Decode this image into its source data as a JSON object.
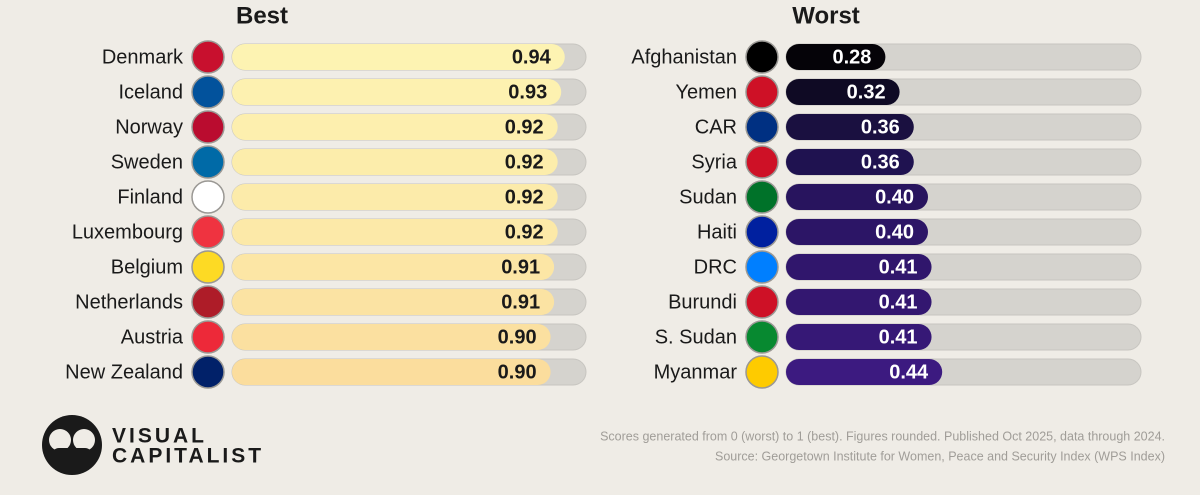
{
  "chart_data": [
    {
      "type": "bar",
      "orientation": "horizontal",
      "title": "Best",
      "categories": [
        "Denmark",
        "Iceland",
        "Norway",
        "Sweden",
        "Finland",
        "Luxembourg",
        "Belgium",
        "Netherlands",
        "Austria",
        "New Zealand"
      ],
      "values": [
        0.94,
        0.93,
        0.92,
        0.92,
        0.92,
        0.92,
        0.91,
        0.91,
        0.9,
        0.9
      ],
      "value_labels": [
        "0.94",
        "0.93",
        "0.92",
        "0.92",
        "0.92",
        "0.92",
        "0.91",
        "0.91",
        "0.90",
        "0.90"
      ],
      "colors": [
        "#fdf3b2",
        "#fdf1b0",
        "#fdefae",
        "#fcedab",
        "#fcebaa",
        "#fce9a8",
        "#fce6a5",
        "#fbe3a3",
        "#fbe0a0",
        "#fbdd9d"
      ],
      "xlim": [
        0,
        1
      ]
    },
    {
      "type": "bar",
      "orientation": "horizontal",
      "title": "Worst",
      "categories": [
        "Afghanistan",
        "Yemen",
        "CAR",
        "Syria",
        "Sudan",
        "Haiti",
        "DRC",
        "Burundi",
        "S. Sudan",
        "Myanmar"
      ],
      "values": [
        0.28,
        0.32,
        0.36,
        0.36,
        0.4,
        0.4,
        0.41,
        0.41,
        0.41,
        0.44
      ],
      "value_labels": [
        "0.28",
        "0.32",
        "0.36",
        "0.36",
        "0.40",
        "0.40",
        "0.41",
        "0.41",
        "0.41",
        "0.44"
      ],
      "colors": [
        "#050308",
        "#0f0a24",
        "#1a1040",
        "#1f1250",
        "#28145e",
        "#2c1566",
        "#30166c",
        "#331770",
        "#361876",
        "#3c1a80"
      ],
      "xlim": [
        0,
        1
      ]
    }
  ],
  "notes": [
    "Scores generated from 0 (worst) to 1 (best). Figures rounded. Published Oct 2025, data through 2024.",
    "Source: Georgetown Institute for Women, Peace and Security Index (WPS Index)"
  ],
  "logo": [
    "VISUAL",
    "CAPITALIST"
  ]
}
